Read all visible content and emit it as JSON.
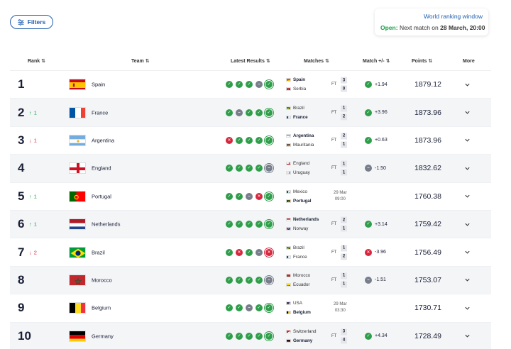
{
  "filters": {
    "label": "Filters"
  },
  "ranking_window": {
    "title": "World ranking window",
    "status": "Open:",
    "text": "Next match on",
    "date": "28 March, 20:00"
  },
  "headers": {
    "rank": "Rank",
    "team": "Team",
    "results": "Latest Results",
    "matches": "Matches",
    "match_delta": "Match +/-",
    "points": "Points",
    "more": "More"
  },
  "rows": [
    {
      "rank": "1",
      "move_dir": "",
      "move": "",
      "team": "Spain",
      "flag": "spain",
      "results": [
        "W",
        "W",
        "W",
        "D",
        "W"
      ],
      "m1": {
        "name": "Spain",
        "flag": "spain",
        "win": true
      },
      "m2": {
        "name": "Serbia",
        "flag": "serbia",
        "win": false
      },
      "status": "FT",
      "s1": "3",
      "s2": "0",
      "delta_type": "W",
      "delta": "+1.94",
      "points": "1879.12"
    },
    {
      "rank": "2",
      "move_dir": "up",
      "move": "1",
      "team": "France",
      "flag": "france",
      "results": [
        "W",
        "D",
        "W",
        "W",
        "W"
      ],
      "m1": {
        "name": "Brazil",
        "flag": "brazil",
        "win": false
      },
      "m2": {
        "name": "France",
        "flag": "france",
        "win": true
      },
      "status": "FT",
      "s1": "1",
      "s2": "2",
      "delta_type": "W",
      "delta": "+3.96",
      "points": "1873.96"
    },
    {
      "rank": "3",
      "move_dir": "down",
      "move": "1",
      "team": "Argentina",
      "flag": "argentina",
      "results": [
        "L",
        "W",
        "W",
        "W",
        "W"
      ],
      "m1": {
        "name": "Argentina",
        "flag": "argentina",
        "win": true
      },
      "m2": {
        "name": "Mauritania",
        "flag": "mauritania",
        "win": false
      },
      "status": "FT",
      "s1": "2",
      "s2": "1",
      "delta_type": "W",
      "delta": "+0.63",
      "points": "1873.96"
    },
    {
      "rank": "4",
      "move_dir": "",
      "move": "",
      "team": "England",
      "flag": "england",
      "results": [
        "W",
        "W",
        "W",
        "W",
        "D"
      ],
      "m1": {
        "name": "England",
        "flag": "england",
        "win": false
      },
      "m2": {
        "name": "Uruguay",
        "flag": "uruguay",
        "win": false
      },
      "status": "FT",
      "s1": "1",
      "s2": "1",
      "delta_type": "D",
      "delta": "-1.50",
      "points": "1832.62"
    },
    {
      "rank": "5",
      "move_dir": "up",
      "move": "1",
      "team": "Portugal",
      "flag": "portugal",
      "results": [
        "W",
        "W",
        "D",
        "L",
        "W"
      ],
      "m1": {
        "name": "Mexico",
        "flag": "mexico",
        "win": false
      },
      "m2": {
        "name": "Portugal",
        "flag": "portugal",
        "win": true
      },
      "status": "",
      "sched_date": "29 Mar",
      "sched_time": "09:00",
      "s1": "",
      "s2": "",
      "delta_type": "",
      "delta": "",
      "points": "1760.38"
    },
    {
      "rank": "6",
      "move_dir": "up",
      "move": "1",
      "team": "Netherlands",
      "flag": "netherlands",
      "results": [
        "W",
        "W",
        "W",
        "W",
        "W"
      ],
      "m1": {
        "name": "Netherlands",
        "flag": "netherlands",
        "win": true
      },
      "m2": {
        "name": "Norway",
        "flag": "norway",
        "win": false
      },
      "status": "FT",
      "s1": "2",
      "s2": "1",
      "delta_type": "W",
      "delta": "+3.14",
      "points": "1759.42"
    },
    {
      "rank": "7",
      "move_dir": "down",
      "move": "2",
      "team": "Brazil",
      "flag": "brazil",
      "results": [
        "W",
        "L",
        "W",
        "D",
        "L"
      ],
      "m1": {
        "name": "Brazil",
        "flag": "brazil",
        "win": false
      },
      "m2": {
        "name": "France",
        "flag": "france",
        "win": false
      },
      "status": "FT",
      "s1": "1",
      "s2": "2",
      "delta_type": "L",
      "delta": "-3.96",
      "points": "1756.49"
    },
    {
      "rank": "8",
      "move_dir": "",
      "move": "",
      "team": "Morocco",
      "flag": "morocco",
      "results": [
        "W",
        "W",
        "W",
        "W",
        "D"
      ],
      "m1": {
        "name": "Morocco",
        "flag": "morocco",
        "win": false
      },
      "m2": {
        "name": "Ecuador",
        "flag": "ecuador",
        "win": false
      },
      "status": "FT",
      "s1": "1",
      "s2": "1",
      "delta_type": "D",
      "delta": "-1.51",
      "points": "1753.07"
    },
    {
      "rank": "9",
      "move_dir": "",
      "move": "",
      "team": "Belgium",
      "flag": "belgium",
      "results": [
        "W",
        "W",
        "D",
        "W",
        "W"
      ],
      "m1": {
        "name": "USA",
        "flag": "usa",
        "win": false
      },
      "m2": {
        "name": "Belgium",
        "flag": "belgium",
        "win": true
      },
      "status": "",
      "sched_date": "29 Mar",
      "sched_time": "03:30",
      "s1": "",
      "s2": "",
      "delta_type": "",
      "delta": "",
      "points": "1730.71"
    },
    {
      "rank": "10",
      "move_dir": "",
      "move": "",
      "team": "Germany",
      "flag": "germany",
      "results": [
        "W",
        "W",
        "W",
        "W",
        "W"
      ],
      "m1": {
        "name": "Switzerland",
        "flag": "switzerland",
        "win": false
      },
      "m2": {
        "name": "Germany",
        "flag": "germany",
        "win": true
      },
      "status": "FT",
      "s1": "3",
      "s2": "4",
      "delta_type": "W",
      "delta": "+4.34",
      "points": "1728.49"
    }
  ]
}
